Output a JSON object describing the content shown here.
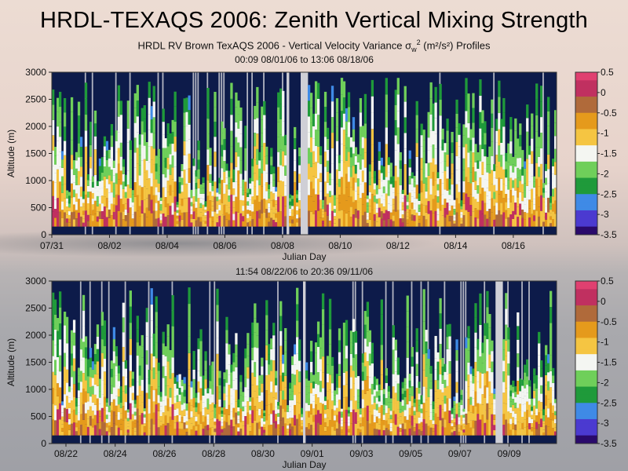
{
  "title": "HRDL-TEXAQS 2006:  Zenith Vertical Mixing Strength",
  "subtitle": {
    "prefix": "HRDL RV Brown TexAQS 2006 - Vertical Velocity Variance ",
    "symbol": "σ",
    "subscript": "w",
    "superscript": "2",
    "units": " (m²/s²) Profiles"
  },
  "colors": {
    "plot_background": "#0d1b4a",
    "data_gap": "#cfcfd6",
    "colormap": [
      "#2a0a6b",
      "#4b3ad0",
      "#3f8ae6",
      "#1f9a3a",
      "#6fcf5a",
      "#f4f6f2",
      "#f5c542",
      "#e59a1c",
      "#b06a3a",
      "#c03060",
      "#e04070"
    ]
  },
  "chart_data": [
    {
      "type": "heatmap",
      "title": "00:09 08/01/06 to 13:06 08/18/06",
      "xlabel": "Julian Day",
      "ylabel": "Altitude (m)",
      "xticks": [
        "07/31",
        "08/02",
        "08/04",
        "08/06",
        "08/08",
        "08/10",
        "08/12",
        "08/14",
        "08/16"
      ],
      "x_range": [
        "07/31",
        "08/18"
      ],
      "ylim": [
        0,
        3000
      ],
      "yticks": [
        "0",
        "500",
        "1000",
        "1500",
        "2000",
        "2500",
        "3000"
      ],
      "colorbar": {
        "range": [
          -3.5,
          0.5
        ],
        "ticks": [
          "0.5",
          "0",
          "-0.5",
          "-1",
          "-1.5",
          "-2",
          "-2.5",
          "-3",
          "-3.5"
        ]
      },
      "gaps": [
        [
          8.3,
          8.4
        ],
        [
          8.85,
          9.1
        ]
      ],
      "seed": 11
    },
    {
      "type": "heatmap",
      "title": "11:54 08/22/06 to 20:36 09/11/06",
      "xlabel": "Julian Day",
      "ylabel": "Altitude (m)",
      "xticks": [
        "08/22",
        "08/24",
        "08/26",
        "08/28",
        "08/30",
        "09/01",
        "09/03",
        "09/05",
        "09/07",
        "09/09"
      ],
      "x_range": [
        "08/21",
        "09/11"
      ],
      "ylim": [
        0,
        3000
      ],
      "yticks": [
        "0",
        "500",
        "1000",
        "1500",
        "2000",
        "2500",
        "3000"
      ],
      "colorbar": {
        "range": [
          -3.5,
          0.5
        ],
        "ticks": [
          "0.5",
          "0",
          "-0.5",
          "-1",
          "-1.5",
          "-2",
          "-2.5",
          "-3",
          "-3.5"
        ]
      },
      "gaps": [
        [
          8.9,
          9.0
        ],
        [
          15.8,
          16.0
        ]
      ],
      "seed": 29
    }
  ]
}
